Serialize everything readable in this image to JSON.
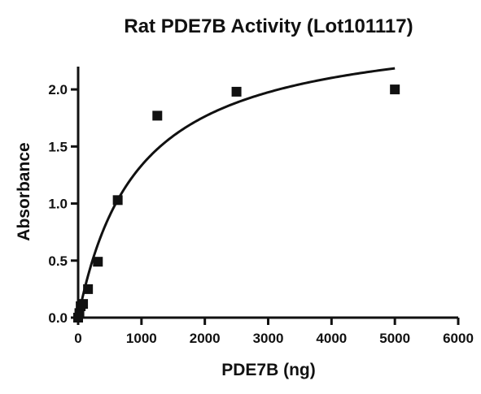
{
  "chart_data": {
    "type": "scatter",
    "title": "Rat PDE7B Activity (Lot101117)",
    "xlabel": "PDE7B (ng)",
    "ylabel": "Absorbance",
    "xlim": [
      0,
      6000
    ],
    "ylim": [
      0,
      2.2
    ],
    "x_ticks": [
      "0",
      "1000",
      "2000",
      "3000",
      "4000",
      "5000",
      "6000"
    ],
    "y_ticks": [
      "0.0",
      "0.5",
      "1.0",
      "1.5",
      "2.0"
    ],
    "grid": false,
    "legend": "none",
    "marker": "square",
    "points": [
      {
        "x": 0,
        "y": 0.0
      },
      {
        "x": 20,
        "y": 0.04
      },
      {
        "x": 40,
        "y": 0.1
      },
      {
        "x": 78,
        "y": 0.12
      },
      {
        "x": 156,
        "y": 0.25
      },
      {
        "x": 312,
        "y": 0.49
      },
      {
        "x": 625,
        "y": 1.03
      },
      {
        "x": 1250,
        "y": 1.77
      },
      {
        "x": 2500,
        "y": 1.98
      },
      {
        "x": 5000,
        "y": 2.0
      }
    ],
    "fit_curve": {
      "model": "hyperbola",
      "bmax": 2.6,
      "kd": 950
    },
    "colors": {
      "ink": "#111111",
      "background": "#ffffff"
    }
  }
}
